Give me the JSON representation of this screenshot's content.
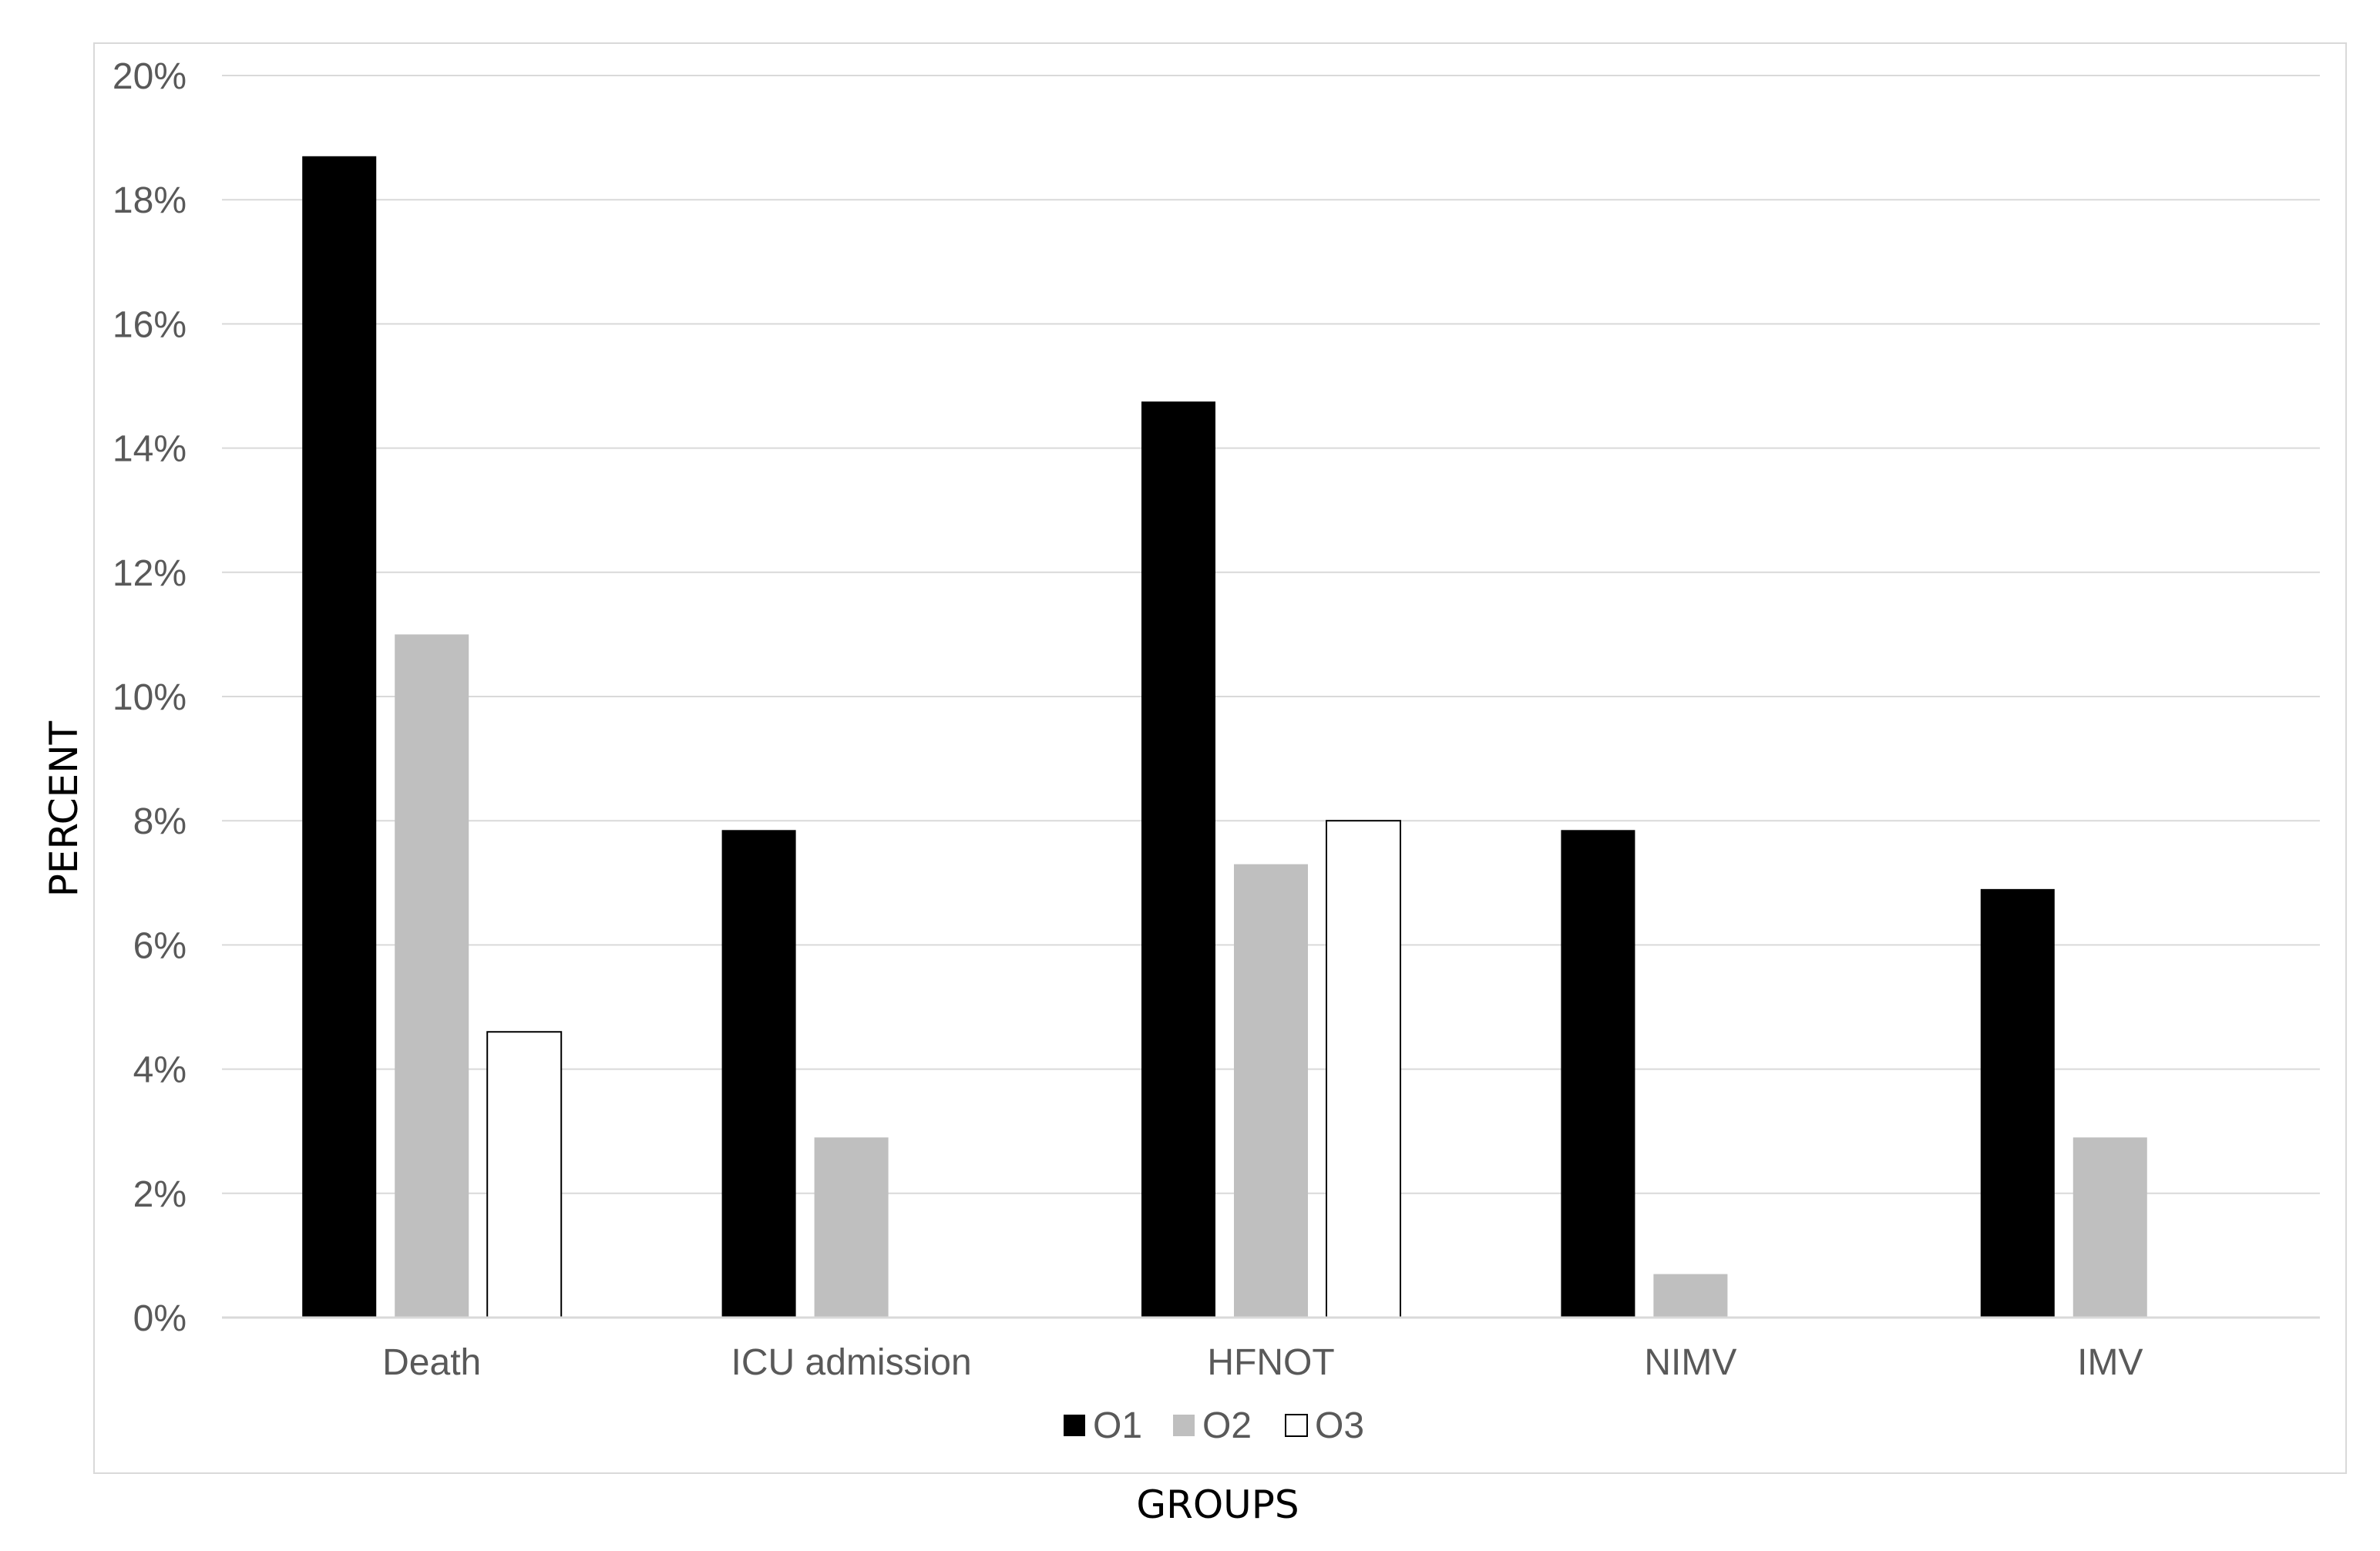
{
  "chart_data": {
    "type": "bar",
    "xlabel": "GROUPS",
    "ylabel": "PERCENT",
    "categories": [
      "Death",
      "ICU admission",
      "HFNOT",
      "NIMV",
      "IMV"
    ],
    "series": [
      {
        "name": "O1",
        "color": "#000000",
        "values": [
          18.7,
          7.85,
          14.75,
          7.85,
          6.9
        ]
      },
      {
        "name": "O2",
        "color": "#bfbfbf",
        "values": [
          11.0,
          2.9,
          7.3,
          0.7,
          2.9
        ]
      },
      {
        "name": "O3",
        "color": "#ffffff",
        "values": [
          4.6,
          0,
          8.0,
          0,
          0
        ]
      }
    ],
    "ylim": [
      0,
      20
    ],
    "yticks": [
      "0%",
      "2%",
      "4%",
      "6%",
      "8%",
      "10%",
      "12%",
      "14%",
      "16%",
      "18%",
      "20%"
    ],
    "grid": true,
    "legend": "bottom"
  }
}
